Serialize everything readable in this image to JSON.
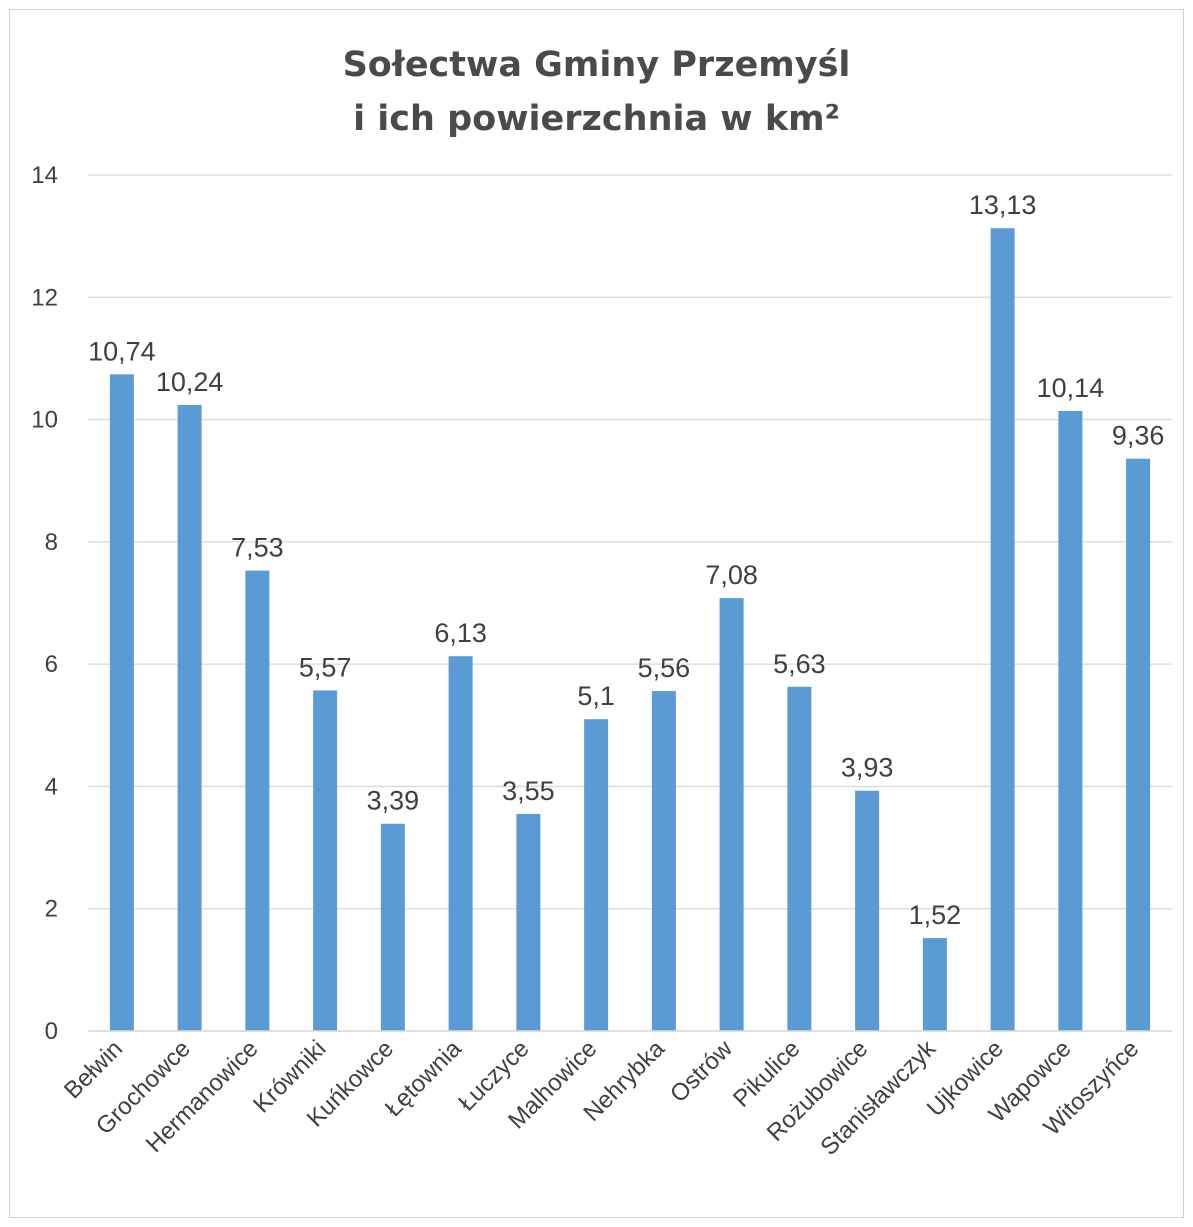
{
  "chart_data": {
    "type": "bar",
    "title_line1": "Sołectwa Gminy Przemyśl",
    "title_line2": "i ich powierzchnia w km²",
    "categories": [
      "Bełwin",
      "Grochowce",
      "Hermanowice",
      "Krówniki",
      "Kuńkowce",
      "Łętownia",
      "Łuczyce",
      "Malhowice",
      "Nehrybka",
      "Ostrów",
      "Pikulice",
      "Rożubowice",
      "Stanisławczyk",
      "Ujkowice",
      "Wapowce",
      "Witoszyńce"
    ],
    "values": [
      10.74,
      10.24,
      7.53,
      5.57,
      3.39,
      6.13,
      3.55,
      5.1,
      5.56,
      7.08,
      5.63,
      3.93,
      1.52,
      13.13,
      10.14,
      9.36
    ],
    "value_labels": [
      "10,74",
      "10,24",
      "7,53",
      "5,57",
      "3,39",
      "6,13",
      "3,55",
      "5,1",
      "5,56",
      "7,08",
      "5,63",
      "3,93",
      "1,52",
      "13,13",
      "10,14",
      "9,36"
    ],
    "ylim": [
      0,
      14
    ],
    "yticks": [
      "0",
      "2",
      "4",
      "6",
      "8",
      "10",
      "12",
      "14"
    ],
    "grid": true,
    "bar_color": "#5b9bd5",
    "grid_color": "#d9d9d9",
    "text_color": "#404040"
  }
}
